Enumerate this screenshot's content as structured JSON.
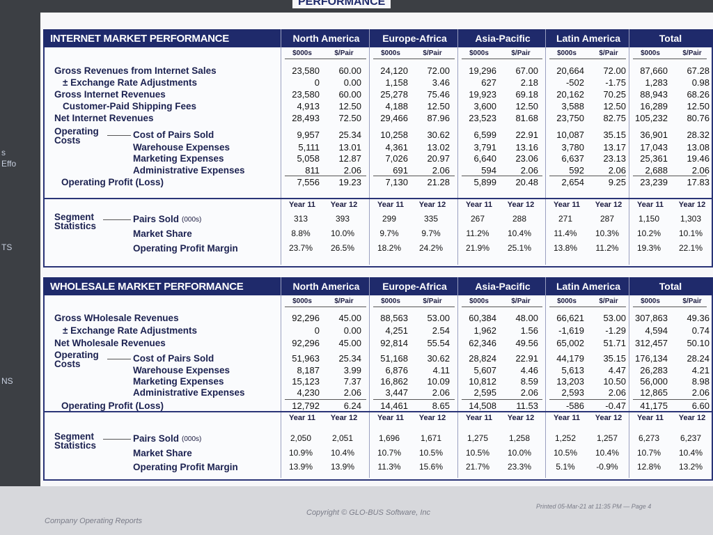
{
  "top_heading": "PERFORMANCE",
  "left_fragments": [
    "s",
    "Effo",
    "TS",
    "NS"
  ],
  "sections": [
    {
      "title": "INTERNET MARKET PERFORMANCE",
      "regions": [
        "North America",
        "Europe-Africa",
        "Asia-Pacific",
        "Latin America",
        "Total"
      ],
      "sub_headers": [
        "$000s",
        "$/Pair"
      ],
      "revenue_rows": [
        {
          "label": "Gross Revenues from Internet Sales",
          "values": [
            [
              "23,580",
              "60.00"
            ],
            [
              "24,120",
              "72.00"
            ],
            [
              "19,296",
              "67.00"
            ],
            [
              "20,664",
              "72.00"
            ],
            [
              "87,660",
              "67.28"
            ]
          ]
        },
        {
          "label": "± Exchange Rate Adjustments",
          "values": [
            [
              "0",
              "0.00"
            ],
            [
              "1,158",
              "3.46"
            ],
            [
              "627",
              "2.18"
            ],
            [
              "-502",
              "-1.75"
            ],
            [
              "1,283",
              "0.98"
            ]
          ]
        },
        {
          "label": "Gross Internet Revenues",
          "values": [
            [
              "23,580",
              "60.00"
            ],
            [
              "25,278",
              "75.46"
            ],
            [
              "19,923",
              "69.18"
            ],
            [
              "20,162",
              "70.25"
            ],
            [
              "88,943",
              "68.26"
            ]
          ]
        },
        {
          "label": "Customer-Paid Shipping Fees",
          "values": [
            [
              "4,913",
              "12.50"
            ],
            [
              "4,188",
              "12.50"
            ],
            [
              "3,600",
              "12.50"
            ],
            [
              "3,588",
              "12.50"
            ],
            [
              "16,289",
              "12.50"
            ]
          ]
        },
        {
          "label": "Net Internet Revenues",
          "values": [
            [
              "28,493",
              "72.50"
            ],
            [
              "29,466",
              "87.96"
            ],
            [
              "23,523",
              "81.68"
            ],
            [
              "23,750",
              "82.75"
            ],
            [
              "105,232",
              "80.76"
            ]
          ]
        }
      ],
      "cost_group_label": "Operating Costs",
      "cost_rows": [
        {
          "label": "Cost of Pairs Sold",
          "values": [
            [
              "9,957",
              "25.34"
            ],
            [
              "10,258",
              "30.62"
            ],
            [
              "6,599",
              "22.91"
            ],
            [
              "10,087",
              "35.15"
            ],
            [
              "36,901",
              "28.32"
            ]
          ]
        },
        {
          "label": "Warehouse Expenses",
          "values": [
            [
              "5,111",
              "13.01"
            ],
            [
              "4,361",
              "13.02"
            ],
            [
              "3,791",
              "13.16"
            ],
            [
              "3,780",
              "13.17"
            ],
            [
              "17,043",
              "13.08"
            ]
          ]
        },
        {
          "label": "Marketing Expenses",
          "values": [
            [
              "5,058",
              "12.87"
            ],
            [
              "7,026",
              "20.97"
            ],
            [
              "6,640",
              "23.06"
            ],
            [
              "6,637",
              "23.13"
            ],
            [
              "25,361",
              "19.46"
            ]
          ]
        },
        {
          "label": "Administrative Expenses",
          "values": [
            [
              "811",
              "2.06"
            ],
            [
              "691",
              "2.06"
            ],
            [
              "594",
              "2.06"
            ],
            [
              "592",
              "2.06"
            ],
            [
              "2,688",
              "2.06"
            ]
          ]
        }
      ],
      "profit_row": {
        "label": "Operating Profit (Loss)",
        "values": [
          [
            "7,556",
            "19.23"
          ],
          [
            "7,130",
            "21.28"
          ],
          [
            "5,899",
            "20.48"
          ],
          [
            "2,654",
            "9.25"
          ],
          [
            "23,239",
            "17.83"
          ]
        ]
      },
      "year_headers": [
        "Year 11",
        "Year 12"
      ],
      "segment_label": "Segment Statistics",
      "segment_rows": [
        {
          "label": "Pairs Sold",
          "unit": "(000s)",
          "values": [
            [
              "313",
              "393"
            ],
            [
              "299",
              "335"
            ],
            [
              "267",
              "288"
            ],
            [
              "271",
              "287"
            ],
            [
              "1,150",
              "1,303"
            ]
          ]
        },
        {
          "label": "Market Share",
          "values": [
            [
              "8.8%",
              "10.0%"
            ],
            [
              "9.7%",
              "9.7%"
            ],
            [
              "11.2%",
              "10.4%"
            ],
            [
              "11.4%",
              "10.3%"
            ],
            [
              "10.2%",
              "10.1%"
            ]
          ]
        },
        {
          "label": "Operating Profit Margin",
          "values": [
            [
              "23.7%",
              "26.5%"
            ],
            [
              "18.2%",
              "24.2%"
            ],
            [
              "21.9%",
              "25.1%"
            ],
            [
              "13.8%",
              "11.2%"
            ],
            [
              "19.3%",
              "22.1%"
            ]
          ]
        }
      ]
    },
    {
      "title": "WHOLESALE MARKET PERFORMANCE",
      "regions": [
        "North America",
        "Europe-Africa",
        "Asia-Pacific",
        "Latin America",
        "Total"
      ],
      "sub_headers": [
        "$000s",
        "$/Pair"
      ],
      "revenue_rows": [
        {
          "label": "Gross WHolesale Revenues",
          "values": [
            [
              "92,296",
              "45.00"
            ],
            [
              "88,563",
              "53.00"
            ],
            [
              "60,384",
              "48.00"
            ],
            [
              "66,621",
              "53.00"
            ],
            [
              "307,863",
              "49.36"
            ]
          ]
        },
        {
          "label": "± Exchange Rate Adjustments",
          "values": [
            [
              "0",
              "0.00"
            ],
            [
              "4,251",
              "2.54"
            ],
            [
              "1,962",
              "1.56"
            ],
            [
              "-1,619",
              "-1.29"
            ],
            [
              "4,594",
              "0.74"
            ]
          ]
        },
        {
          "label": "Net Wholesale Revenues",
          "values": [
            [
              "92,296",
              "45.00"
            ],
            [
              "92,814",
              "55.54"
            ],
            [
              "62,346",
              "49.56"
            ],
            [
              "65,002",
              "51.71"
            ],
            [
              "312,457",
              "50.10"
            ]
          ]
        }
      ],
      "cost_group_label": "Operating Costs",
      "cost_rows": [
        {
          "label": "Cost of Pairs Sold",
          "values": [
            [
              "51,963",
              "25.34"
            ],
            [
              "51,168",
              "30.62"
            ],
            [
              "28,824",
              "22.91"
            ],
            [
              "44,179",
              "35.15"
            ],
            [
              "176,134",
              "28.24"
            ]
          ]
        },
        {
          "label": "Warehouse Expenses",
          "values": [
            [
              "8,187",
              "3.99"
            ],
            [
              "6,876",
              "4.11"
            ],
            [
              "5,607",
              "4.46"
            ],
            [
              "5,613",
              "4.47"
            ],
            [
              "26,283",
              "4.21"
            ]
          ]
        },
        {
          "label": "Marketing Expenses",
          "values": [
            [
              "15,123",
              "7.37"
            ],
            [
              "16,862",
              "10.09"
            ],
            [
              "10,812",
              "8.59"
            ],
            [
              "13,203",
              "10.50"
            ],
            [
              "56,000",
              "8.98"
            ]
          ]
        },
        {
          "label": "Administrative Expenses",
          "values": [
            [
              "4,230",
              "2.06"
            ],
            [
              "3,447",
              "2.06"
            ],
            [
              "2,595",
              "2.06"
            ],
            [
              "2,593",
              "2.06"
            ],
            [
              "12,865",
              "2.06"
            ]
          ]
        }
      ],
      "profit_row": {
        "label": "Operating Profit (Loss)",
        "values": [
          [
            "12,792",
            "6.24"
          ],
          [
            "14,461",
            "8.65"
          ],
          [
            "14,508",
            "11.53"
          ],
          [
            "-586",
            "-0.47"
          ],
          [
            "41,175",
            "6.60"
          ]
        ]
      },
      "year_headers": [
        "Year 11",
        "Year 12"
      ],
      "segment_label": "Segment Statistics",
      "segment_rows": [
        {
          "label": "Pairs Sold",
          "unit": "(000s)",
          "values": [
            [
              "2,050",
              "2,051"
            ],
            [
              "1,696",
              "1,671"
            ],
            [
              "1,275",
              "1,258"
            ],
            [
              "1,252",
              "1,257"
            ],
            [
              "6,273",
              "6,237"
            ]
          ]
        },
        {
          "label": "Market Share",
          "values": [
            [
              "10.9%",
              "10.4%"
            ],
            [
              "10.7%",
              "10.5%"
            ],
            [
              "10.5%",
              "10.0%"
            ],
            [
              "10.5%",
              "10.4%"
            ],
            [
              "10.7%",
              "10.4%"
            ]
          ]
        },
        {
          "label": "Operating Profit Margin",
          "values": [
            [
              "13.9%",
              "13.9%"
            ],
            [
              "11.3%",
              "15.6%"
            ],
            [
              "21.7%",
              "23.3%"
            ],
            [
              "5.1%",
              "-0.9%"
            ],
            [
              "12.8%",
              "13.2%"
            ]
          ]
        }
      ]
    }
  ],
  "footer": {
    "left": "Company Operating Reports",
    "center": "Copyright © GLO-BUS Software, Inc",
    "right": "Printed 05-Mar-21 at 11:35 PM — Page 4"
  }
}
